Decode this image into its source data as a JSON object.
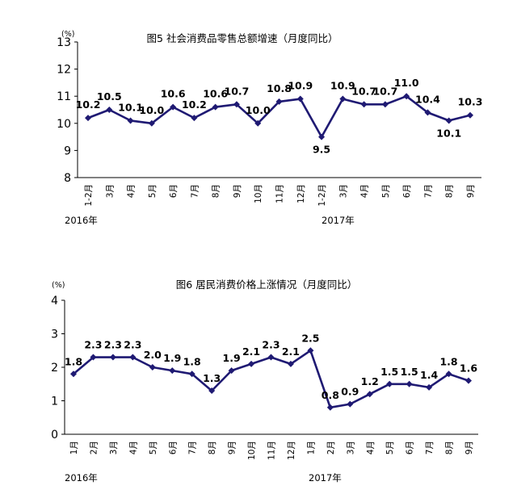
{
  "chart_data": [
    {
      "type": "line",
      "title": "图5 社会消费品零售总额增速（月度同比）",
      "unit": "(%)",
      "ylim": [
        8,
        13
      ],
      "yticks": [
        "8",
        "9",
        "10",
        "11",
        "12",
        "13"
      ],
      "categories": [
        "1-2月",
        "3月",
        "4月",
        "5月",
        "6月",
        "7月",
        "8月",
        "9月",
        "10月",
        "11月",
        "12月",
        "1-2月",
        "3月",
        "4月",
        "5月",
        "6月",
        "7月",
        "8月",
        "9月"
      ],
      "year_labels": [
        "2016年",
        "2017年"
      ],
      "series": [
        {
          "values": [
            10.2,
            10.5,
            10.1,
            10.0,
            10.6,
            10.2,
            10.6,
            10.7,
            10.0,
            10.8,
            10.9,
            9.5,
            10.9,
            10.7,
            10.7,
            11.0,
            10.4,
            10.1,
            10.3
          ],
          "labels": [
            "10.2",
            "10.5",
            "10.1",
            "10.0",
            "10.6",
            "10.2",
            "10.6",
            "10.7",
            "10.0",
            "10.8",
            "10.9",
            "9.5",
            "10.9",
            "10.7",
            "10.7",
            "11.0",
            "10.4",
            "10.1",
            "10.3"
          ]
        }
      ],
      "grid": false
    },
    {
      "type": "line",
      "title": "图6  居民消费价格上涨情况（月度同比）",
      "unit": "(%)",
      "ylim": [
        0,
        4
      ],
      "yticks": [
        "0",
        "1",
        "2",
        "3",
        "4"
      ],
      "categories": [
        "1月",
        "2月",
        "3月",
        "4月",
        "5月",
        "6月",
        "7月",
        "8月",
        "9月",
        "10月",
        "11月",
        "12月",
        "1月",
        "2月",
        "3月",
        "4月",
        "5月",
        "6月",
        "7月",
        "8月",
        "9月"
      ],
      "year_labels": [
        "2016年",
        "2017年"
      ],
      "series": [
        {
          "values": [
            1.8,
            2.3,
            2.3,
            2.3,
            2.0,
            1.9,
            1.8,
            1.3,
            1.9,
            2.1,
            2.3,
            2.1,
            2.5,
            0.8,
            0.9,
            1.2,
            1.5,
            1.5,
            1.4,
            1.8,
            1.6
          ],
          "labels": [
            "1.8",
            "2.3",
            "2.3",
            "2.3",
            "2.0",
            "1.9",
            "1.8",
            "1.3",
            "1.9",
            "2.1",
            "2.3",
            "2.1",
            "2.5",
            "0.8",
            "0.9",
            "1.2",
            "1.5",
            "1.5",
            "1.4",
            "1.8",
            "1.6"
          ]
        }
      ],
      "grid": false
    }
  ],
  "colors": {
    "series": "#1f1a73"
  }
}
